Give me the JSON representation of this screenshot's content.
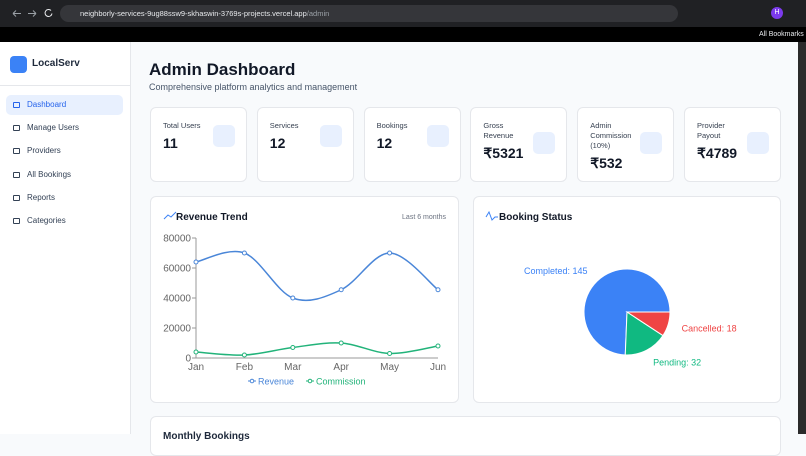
{
  "browser": {
    "url_host": "neighborly-services-9ug88ssw9-skhaswin-3769s-projects.vercel.app",
    "url_path": "/admin",
    "bookmarks": "All Bookmarks",
    "avatar": "H"
  },
  "sidebar": {
    "brand": "LocalServ",
    "nav": [
      "Dashboard",
      "Manage Users",
      "Providers",
      "All Bookings",
      "Reports",
      "Categories"
    ]
  },
  "header": {
    "title": "Admin Dashboard",
    "subtitle": "Comprehensive platform analytics and management"
  },
  "stats": [
    {
      "label": "Total Users",
      "value": "11"
    },
    {
      "label": "Services",
      "value": "12"
    },
    {
      "label": "Bookings",
      "value": "12"
    },
    {
      "label": "Gross Revenue",
      "value": "₹5321"
    },
    {
      "label": "Admin Commission (10%)",
      "value": "₹532"
    },
    {
      "label": "Provider Payout",
      "value": "₹4789"
    }
  ],
  "chart_data": [
    {
      "type": "line",
      "title": "Revenue Trend",
      "subtitle": "Last 6 months",
      "categories": [
        "Jan",
        "Feb",
        "Mar",
        "Apr",
        "May",
        "Jun"
      ],
      "series": [
        {
          "name": "Revenue",
          "color": "#4a86d8",
          "values": [
            64000,
            70000,
            40000,
            45500,
            70000,
            45500
          ]
        },
        {
          "name": "Commission",
          "color": "#22b37a",
          "values": [
            4000,
            2000,
            7000,
            10000,
            3000,
            8000
          ]
        }
      ],
      "ylim": [
        0,
        80000
      ],
      "yticks": [
        0,
        20000,
        40000,
        60000,
        80000
      ]
    },
    {
      "type": "pie",
      "title": "Booking Status",
      "categories": [
        "Completed",
        "Pending",
        "Cancelled"
      ],
      "values": [
        145,
        32,
        18
      ],
      "value_labels": [
        "Completed: 145",
        "Pending: 32",
        "Cancelled: 18"
      ],
      "colors": [
        "#3b82f6",
        "#10b981",
        "#ef4444"
      ]
    }
  ],
  "next_section": "Monthly Bookings"
}
